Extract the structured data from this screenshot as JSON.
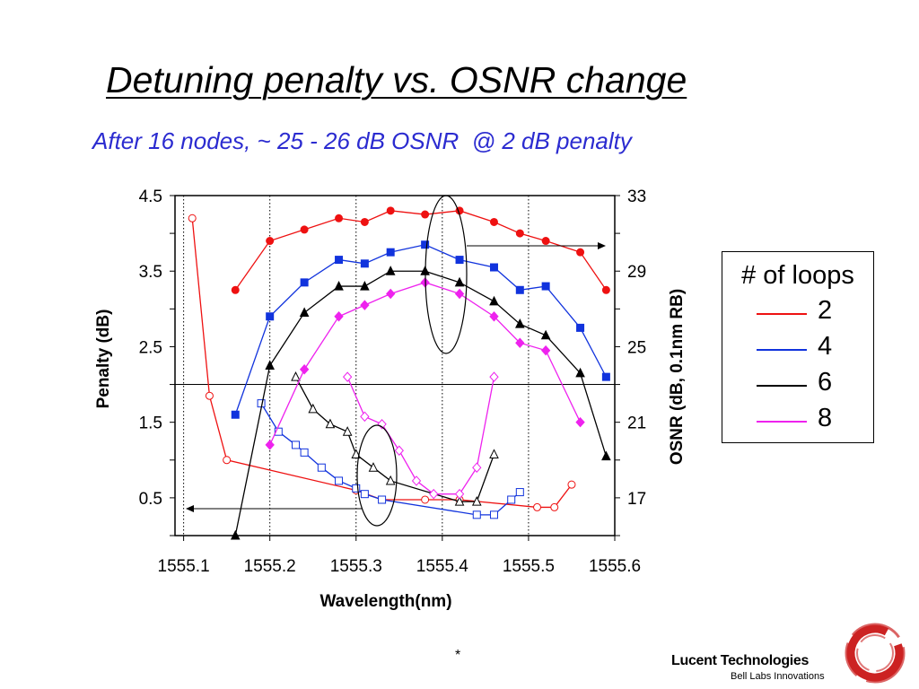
{
  "slide": {
    "title": "Detuning penalty vs. OSNR change",
    "subtitle": "After 16 nodes, ~ 25 - 26 dB OSNR  @ 2 dB penalty",
    "footnote": "*"
  },
  "logo": {
    "name": "Lucent Technologies",
    "tagline": "Bell Labs Innovations",
    "mark_color": "#cc2222"
  },
  "legend": {
    "title": "# of loops",
    "items": [
      {
        "label": "2",
        "color": "#ee1111"
      },
      {
        "label": "4",
        "color": "#1133dd"
      },
      {
        "label": "6",
        "color": "#000000"
      },
      {
        "label": "8",
        "color": "#ee22ee"
      }
    ]
  },
  "chart_data": {
    "type": "line",
    "xlabel": "Wavelength(nm)",
    "ylabel": "Penalty (dB)",
    "y2label": "OSNR (dB, 0.1nm RB)",
    "xlim": [
      1555.09,
      1555.6
    ],
    "ylim": [
      0,
      4.5
    ],
    "y2lim": [
      15,
      33
    ],
    "x_ticks": [
      "1555.1",
      "1555.2",
      "1555.3",
      "1555.4",
      "1555.5",
      "1555.6"
    ],
    "y_ticks": [
      "0.5",
      "1.5",
      "2.5",
      "3.5",
      "4.5"
    ],
    "y2_ticks": [
      "17",
      "21",
      "25",
      "29",
      "33"
    ],
    "penalty_series": [
      {
        "loops": "2",
        "color": "#ee1111",
        "x": [
          1555.16,
          1555.2,
          1555.24,
          1555.28,
          1555.31,
          1555.34,
          1555.38,
          1555.42,
          1555.46,
          1555.49,
          1555.52,
          1555.56,
          1555.59
        ],
        "y": [
          3.25,
          3.9,
          4.05,
          4.2,
          4.15,
          4.3,
          4.25,
          4.3,
          4.15,
          4.0,
          3.9,
          3.75,
          3.25
        ]
      },
      {
        "loops": "4",
        "color": "#1133dd",
        "x": [
          1555.16,
          1555.2,
          1555.24,
          1555.28,
          1555.31,
          1555.34,
          1555.38,
          1555.42,
          1555.46,
          1555.49,
          1555.52,
          1555.56,
          1555.59
        ],
        "y": [
          1.6,
          2.9,
          3.35,
          3.65,
          3.6,
          3.75,
          3.85,
          3.65,
          3.55,
          3.25,
          3.3,
          2.75,
          2.1
        ]
      },
      {
        "loops": "6",
        "color": "#000000",
        "x": [
          1555.16,
          1555.2,
          1555.24,
          1555.28,
          1555.31,
          1555.34,
          1555.38,
          1555.42,
          1555.46,
          1555.49,
          1555.52,
          1555.56,
          1555.59
        ],
        "y": [
          0.0,
          2.25,
          2.95,
          3.3,
          3.3,
          3.5,
          3.5,
          3.35,
          3.1,
          2.8,
          2.65,
          2.15,
          1.05
        ]
      },
      {
        "loops": "8",
        "color": "#ee22ee",
        "x": [
          1555.2,
          1555.24,
          1555.28,
          1555.31,
          1555.34,
          1555.38,
          1555.42,
          1555.46,
          1555.49,
          1555.52,
          1555.56
        ],
        "y": [
          1.2,
          2.2,
          2.9,
          3.05,
          3.2,
          3.35,
          3.2,
          2.9,
          2.55,
          2.45,
          1.5
        ]
      }
    ],
    "osnr_series": [
      {
        "loops": "2",
        "color": "#ee1111",
        "x": [
          1555.11,
          1555.13,
          1555.15,
          1555.3,
          1555.33,
          1555.38,
          1555.42,
          1555.51,
          1555.53,
          1555.55
        ],
        "y": [
          31.8,
          22.4,
          19.0,
          17.4,
          16.9,
          16.9,
          16.9,
          16.5,
          16.5,
          17.7
        ]
      },
      {
        "loops": "4",
        "color": "#1133dd",
        "x": [
          1555.19,
          1555.21,
          1555.23,
          1555.24,
          1555.26,
          1555.28,
          1555.3,
          1555.31,
          1555.33,
          1555.44,
          1555.46,
          1555.48,
          1555.49
        ],
        "y": [
          22.0,
          20.5,
          19.8,
          19.4,
          18.6,
          17.9,
          17.5,
          17.2,
          16.9,
          16.1,
          16.1,
          16.9,
          17.3
        ]
      },
      {
        "loops": "6",
        "color": "#000000",
        "x": [
          1555.23,
          1555.25,
          1555.27,
          1555.29,
          1555.3,
          1555.32,
          1555.34,
          1555.42,
          1555.44,
          1555.46
        ],
        "y": [
          23.4,
          21.7,
          20.9,
          20.5,
          19.3,
          18.6,
          17.9,
          16.8,
          16.8,
          19.3
        ]
      },
      {
        "loops": "8",
        "color": "#ee22ee",
        "x": [
          1555.29,
          1555.31,
          1555.33,
          1555.35,
          1555.37,
          1555.39,
          1555.42,
          1555.44,
          1555.46
        ],
        "y": [
          23.4,
          21.3,
          20.9,
          19.5,
          17.9,
          17.2,
          17.2,
          18.6,
          23.4
        ]
      }
    ]
  }
}
